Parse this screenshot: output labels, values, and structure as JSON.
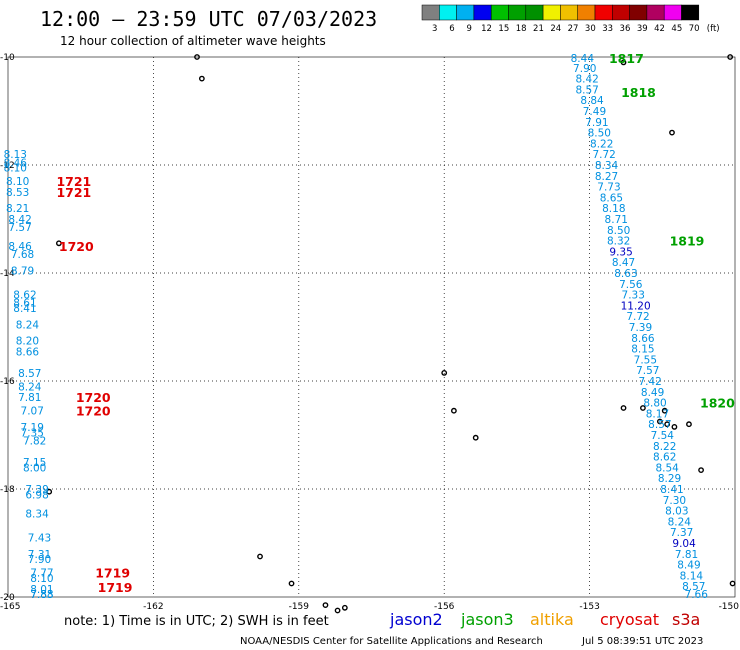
{
  "title": "12:00 – 23:59 UTC 07/03/2023",
  "subtitle": "12 hour collection of altimeter wave heights",
  "color_scale": {
    "colors": [
      "#808080",
      "#00f0f0",
      "#00b0f0",
      "#0000f0",
      "#00c000",
      "#00a000",
      "#009000",
      "#f0f000",
      "#f0c000",
      "#f08000",
      "#f00000",
      "#c00000",
      "#800000",
      "#b00060",
      "#f000f0",
      "#000000"
    ],
    "labels": [
      "3",
      "6",
      "9",
      "12",
      "15",
      "18",
      "21",
      "24",
      "27",
      "30",
      "33",
      "36",
      "39",
      "42",
      "45",
      "70"
    ],
    "unit": "(ft)"
  },
  "axes": {
    "x_ticks": [
      "-165",
      "-162",
      "-159",
      "-156",
      "-153",
      "-150"
    ],
    "y_ticks": [
      "-10",
      "-12",
      "-14",
      "-16",
      "-18",
      "-20"
    ],
    "lon_range": [
      -165,
      -150
    ],
    "lat_range": [
      -20,
      -10
    ],
    "grid": "dotted"
  },
  "colors": {
    "jason2": "#0000d0",
    "jason3": "#00a000",
    "altika": "#f0a000",
    "cryosat": "#e00000",
    "s3a": "#c00000",
    "swh_default": "#0090e0",
    "swh_high": "#0000c0"
  },
  "measurements": [
    {
      "t": "8.44",
      "lon": -153.15,
      "lat": -10.0,
      "c": "swh_default"
    },
    {
      "t": "7.90",
      "lon": -153.1,
      "lat": -10.2,
      "c": "swh_default"
    },
    {
      "t": "8.42",
      "lon": -153.05,
      "lat": -10.4,
      "c": "swh_default"
    },
    {
      "t": "8.57",
      "lon": -153.05,
      "lat": -10.6,
      "c": "swh_default"
    },
    {
      "t": "8.84",
      "lon": -152.95,
      "lat": -10.8,
      "c": "swh_default"
    },
    {
      "t": "7.49",
      "lon": -152.9,
      "lat": -11.0,
      "c": "swh_default"
    },
    {
      "t": "7.91",
      "lon": -152.85,
      "lat": -11.2,
      "c": "swh_default"
    },
    {
      "t": "8.50",
      "lon": -152.8,
      "lat": -11.4,
      "c": "swh_default"
    },
    {
      "t": "8.22",
      "lon": -152.75,
      "lat": -11.6,
      "c": "swh_default"
    },
    {
      "t": "7.72",
      "lon": -152.7,
      "lat": -11.8,
      "c": "swh_default"
    },
    {
      "t": "8.34",
      "lon": -152.65,
      "lat": -12.0,
      "c": "swh_default"
    },
    {
      "t": "8.27",
      "lon": -152.65,
      "lat": -12.2,
      "c": "swh_default"
    },
    {
      "t": "7.73",
      "lon": -152.6,
      "lat": -12.4,
      "c": "swh_default"
    },
    {
      "t": "8.65",
      "lon": -152.55,
      "lat": -12.6,
      "c": "swh_default"
    },
    {
      "t": "8.18",
      "lon": -152.5,
      "lat": -12.8,
      "c": "swh_default"
    },
    {
      "t": "8.71",
      "lon": -152.45,
      "lat": -13.0,
      "c": "swh_default"
    },
    {
      "t": "8.50",
      "lon": -152.4,
      "lat": -13.2,
      "c": "swh_default"
    },
    {
      "t": "8.32",
      "lon": -152.4,
      "lat": -13.4,
      "c": "swh_default"
    },
    {
      "t": "9.35",
      "lon": -152.35,
      "lat": -13.6,
      "c": "swh_high"
    },
    {
      "t": "8.47",
      "lon": -152.3,
      "lat": -13.8,
      "c": "swh_default"
    },
    {
      "t": "8.63",
      "lon": -152.25,
      "lat": -14.0,
      "c": "swh_default"
    },
    {
      "t": "7.56",
      "lon": -152.15,
      "lat": -14.2,
      "c": "swh_default"
    },
    {
      "t": "7.33",
      "lon": -152.1,
      "lat": -14.4,
      "c": "swh_default"
    },
    {
      "t": "11.20",
      "lon": -152.05,
      "lat": -14.6,
      "c": "swh_high"
    },
    {
      "t": "7.72",
      "lon": -152.0,
      "lat": -14.8,
      "c": "swh_default"
    },
    {
      "t": "7.39",
      "lon": -151.95,
      "lat": -15.0,
      "c": "swh_default"
    },
    {
      "t": "8.66",
      "lon": -151.9,
      "lat": -15.2,
      "c": "swh_default"
    },
    {
      "t": "8.15",
      "lon": -151.9,
      "lat": -15.4,
      "c": "swh_default"
    },
    {
      "t": "7.55",
      "lon": -151.85,
      "lat": -15.6,
      "c": "swh_default"
    },
    {
      "t": "7.57",
      "lon": -151.8,
      "lat": -15.8,
      "c": "swh_default"
    },
    {
      "t": "7.42",
      "lon": -151.75,
      "lat": -16.0,
      "c": "swh_default"
    },
    {
      "t": "8.49",
      "lon": -151.7,
      "lat": -16.2,
      "c": "swh_default"
    },
    {
      "t": "8.80",
      "lon": -151.65,
      "lat": -16.4,
      "c": "swh_default"
    },
    {
      "t": "8.17",
      "lon": -151.6,
      "lat": -16.6,
      "c": "swh_default"
    },
    {
      "t": "8.57",
      "lon": -151.55,
      "lat": -16.8,
      "c": "swh_default"
    },
    {
      "t": "7.54",
      "lon": -151.5,
      "lat": -17.0,
      "c": "swh_default"
    },
    {
      "t": "8.22",
      "lon": -151.45,
      "lat": -17.2,
      "c": "swh_default"
    },
    {
      "t": "8.62",
      "lon": -151.45,
      "lat": -17.4,
      "c": "swh_default"
    },
    {
      "t": "8.54",
      "lon": -151.4,
      "lat": -17.6,
      "c": "swh_default"
    },
    {
      "t": "8.29",
      "lon": -151.35,
      "lat": -17.8,
      "c": "swh_default"
    },
    {
      "t": "8.41",
      "lon": -151.3,
      "lat": -18.0,
      "c": "swh_default"
    },
    {
      "t": "7.30",
      "lon": -151.25,
      "lat": -18.2,
      "c": "swh_default"
    },
    {
      "t": "8.03",
      "lon": -151.2,
      "lat": -18.4,
      "c": "swh_default"
    },
    {
      "t": "8.24",
      "lon": -151.15,
      "lat": -18.6,
      "c": "swh_default"
    },
    {
      "t": "7.37",
      "lon": -151.1,
      "lat": -18.8,
      "c": "swh_default"
    },
    {
      "t": "9.04",
      "lon": -151.05,
      "lat": -19.0,
      "c": "swh_high"
    },
    {
      "t": "7.81",
      "lon": -151.0,
      "lat": -19.2,
      "c": "swh_default"
    },
    {
      "t": "8.49",
      "lon": -150.95,
      "lat": -19.4,
      "c": "swh_default"
    },
    {
      "t": "8.14",
      "lon": -150.9,
      "lat": -19.6,
      "c": "swh_default"
    },
    {
      "t": "8.57",
      "lon": -150.85,
      "lat": -19.8,
      "c": "swh_default"
    },
    {
      "t": "7.66",
      "lon": -150.8,
      "lat": -20.0,
      "c": "swh_default"
    },
    {
      "t": "8.13",
      "lon": -164.85,
      "lat": -11.8,
      "c": "swh_default"
    },
    {
      "t": "8.46",
      "lon": -164.85,
      "lat": -11.95,
      "c": "swh_default"
    },
    {
      "t": "8.10",
      "lon": -164.85,
      "lat": -12.05,
      "c": "swh_default"
    },
    {
      "t": "8.10",
      "lon": -164.8,
      "lat": -12.3,
      "c": "swh_default"
    },
    {
      "t": "8.53",
      "lon": -164.8,
      "lat": -12.5,
      "c": "swh_default"
    },
    {
      "t": "8.21",
      "lon": -164.8,
      "lat": -12.8,
      "c": "swh_default"
    },
    {
      "t": "8.42",
      "lon": -164.75,
      "lat": -13.0,
      "c": "swh_default"
    },
    {
      "t": "7.57",
      "lon": -164.75,
      "lat": -13.15,
      "c": "swh_default"
    },
    {
      "t": "8.46",
      "lon": -164.75,
      "lat": -13.5,
      "c": "swh_default"
    },
    {
      "t": "7.68",
      "lon": -164.7,
      "lat": -13.65,
      "c": "swh_default"
    },
    {
      "t": "8.79",
      "lon": -164.7,
      "lat": -13.95,
      "c": "swh_default"
    },
    {
      "t": "8.62",
      "lon": -164.65,
      "lat": -14.4,
      "c": "swh_default"
    },
    {
      "t": "8.61",
      "lon": -164.65,
      "lat": -14.55,
      "c": "swh_default"
    },
    {
      "t": "8.41",
      "lon": -164.65,
      "lat": -14.65,
      "c": "swh_default"
    },
    {
      "t": "8.24",
      "lon": -164.6,
      "lat": -14.95,
      "c": "swh_default"
    },
    {
      "t": "8.20",
      "lon": -164.6,
      "lat": -15.25,
      "c": "swh_default"
    },
    {
      "t": "8.66",
      "lon": -164.6,
      "lat": -15.45,
      "c": "swh_default"
    },
    {
      "t": "8.57",
      "lon": -164.55,
      "lat": -15.85,
      "c": "swh_default"
    },
    {
      "t": "8.24",
      "lon": -164.55,
      "lat": -16.1,
      "c": "swh_default"
    },
    {
      "t": "7.81",
      "lon": -164.55,
      "lat": -16.3,
      "c": "swh_default"
    },
    {
      "t": "7.07",
      "lon": -164.5,
      "lat": -16.55,
      "c": "swh_default"
    },
    {
      "t": "7.19",
      "lon": -164.5,
      "lat": -16.85,
      "c": "swh_default"
    },
    {
      "t": "7.35",
      "lon": -164.5,
      "lat": -16.95,
      "c": "swh_default"
    },
    {
      "t": "7.82",
      "lon": -164.45,
      "lat": -17.1,
      "c": "swh_default"
    },
    {
      "t": "7.15",
      "lon": -164.45,
      "lat": -17.5,
      "c": "swh_default"
    },
    {
      "t": "8.00",
      "lon": -164.45,
      "lat": -17.6,
      "c": "swh_default"
    },
    {
      "t": "7.39",
      "lon": -164.4,
      "lat": -18.0,
      "c": "swh_default"
    },
    {
      "t": "6.98",
      "lon": -164.4,
      "lat": -18.1,
      "c": "swh_default"
    },
    {
      "t": "8.34",
      "lon": -164.4,
      "lat": -18.45,
      "c": "swh_default"
    },
    {
      "t": "7.43",
      "lon": -164.35,
      "lat": -18.9,
      "c": "swh_default"
    },
    {
      "t": "7.31",
      "lon": -164.35,
      "lat": -19.2,
      "c": "swh_default"
    },
    {
      "t": "7.90",
      "lon": -164.35,
      "lat": -19.3,
      "c": "swh_default"
    },
    {
      "t": "7.77",
      "lon": -164.3,
      "lat": -19.55,
      "c": "swh_default"
    },
    {
      "t": "8.10",
      "lon": -164.3,
      "lat": -19.65,
      "c": "swh_default"
    },
    {
      "t": "8.01",
      "lon": -164.3,
      "lat": -19.85,
      "c": "swh_default"
    },
    {
      "t": "7.83",
      "lon": -164.3,
      "lat": -20.15,
      "c": "swh_default"
    },
    {
      "t": "7.88",
      "lon": -164.3,
      "lat": -20.2,
      "c": "swh_default"
    }
  ],
  "pass_labels": [
    {
      "t": "1817",
      "lon": -152.6,
      "lat": -10.0,
      "c": "jason3"
    },
    {
      "t": "1818",
      "lon": -152.35,
      "lat": -10.65,
      "c": "jason3"
    },
    {
      "t": "1819",
      "lon": -151.35,
      "lat": -13.4,
      "c": "jason3"
    },
    {
      "t": "1820",
      "lon": -150.55,
      "lat": -16.4,
      "c": "jason3"
    },
    {
      "t": "1721",
      "lon": -164.0,
      "lat": -12.3,
      "c": "cryosat"
    },
    {
      "t": "1721",
      "lon": -164.0,
      "lat": -12.5,
      "c": "cryosat"
    },
    {
      "t": "1720",
      "lon": -163.95,
      "lat": -13.5,
      "c": "cryosat"
    },
    {
      "t": "1720",
      "lon": -163.6,
      "lat": -16.3,
      "c": "cryosat"
    },
    {
      "t": "1720",
      "lon": -163.6,
      "lat": -16.55,
      "c": "cryosat"
    },
    {
      "t": "1719",
      "lon": -163.2,
      "lat": -19.55,
      "c": "cryosat"
    },
    {
      "t": "1719",
      "lon": -163.15,
      "lat": -20.15,
      "c": "cryosat"
    }
  ],
  "islands": [
    {
      "lon": -161.1,
      "lat": -10.0
    },
    {
      "lon": -161.0,
      "lat": -10.4
    },
    {
      "lon": -152.3,
      "lat": -10.1
    },
    {
      "lon": -151.3,
      "lat": -11.4
    },
    {
      "lon": -150.1,
      "lat": -10.0
    },
    {
      "lon": -163.95,
      "lat": -13.45
    },
    {
      "lon": -156.0,
      "lat": -15.85
    },
    {
      "lon": -155.8,
      "lat": -16.55
    },
    {
      "lon": -155.35,
      "lat": -17.05
    },
    {
      "lon": -152.3,
      "lat": -16.5
    },
    {
      "lon": -151.9,
      "lat": -16.5
    },
    {
      "lon": -151.45,
      "lat": -16.55
    },
    {
      "lon": -151.55,
      "lat": -16.75
    },
    {
      "lon": -151.4,
      "lat": -16.8
    },
    {
      "lon": -151.25,
      "lat": -16.85
    },
    {
      "lon": -150.95,
      "lat": -16.8
    },
    {
      "lon": -150.7,
      "lat": -17.65
    },
    {
      "lon": -164.15,
      "lat": -18.05
    },
    {
      "lon": -159.8,
      "lat": -19.25
    },
    {
      "lon": -159.15,
      "lat": -19.75
    },
    {
      "lon": -158.45,
      "lat": -20.15
    },
    {
      "lon": -158.2,
      "lat": -20.25
    },
    {
      "lon": -158.05,
      "lat": -20.2
    },
    {
      "lon": -150.05,
      "lat": -19.75
    }
  ],
  "note": "note: 1) Time is in UTC; 2) SWH is in feet",
  "satellites": [
    {
      "name": "jason2",
      "c": "jason2"
    },
    {
      "name": "jason3",
      "c": "jason3"
    },
    {
      "name": "altika",
      "c": "altika"
    },
    {
      "name": "cryosat",
      "c": "cryosat"
    },
    {
      "name": "s3a",
      "c": "s3a"
    }
  ],
  "credit_left": "NOAA/NESDIS Center for Satellite Applications and Research",
  "credit_right": "Jul  5 08:39:51 UTC 2023"
}
